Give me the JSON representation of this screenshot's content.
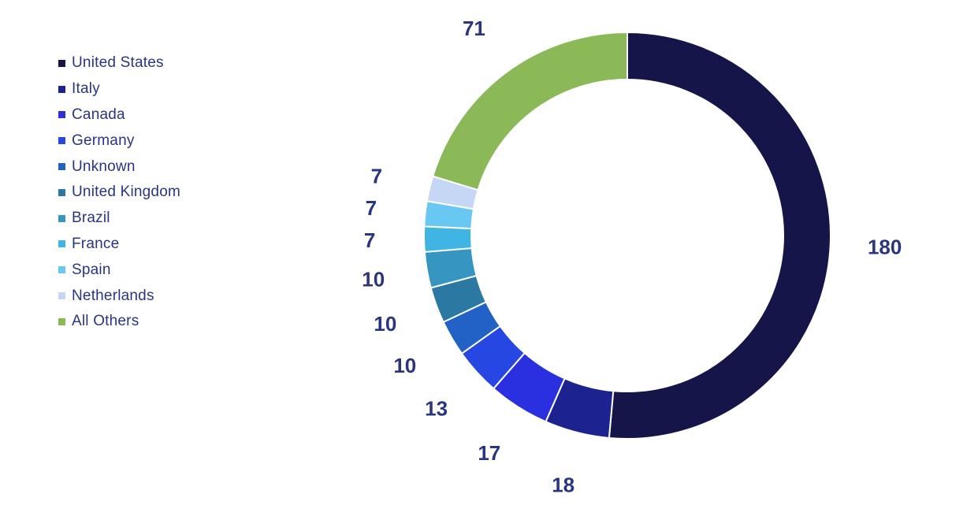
{
  "chart_data": {
    "type": "pie",
    "categories": [
      "United States",
      "Italy",
      "Canada",
      "Germany",
      "Unknown",
      "United Kingdom",
      "Brazil",
      "France",
      "Spain",
      "Netherlands",
      "All Others"
    ],
    "values": [
      180,
      18,
      17,
      13,
      10,
      10,
      10,
      7,
      7,
      7,
      71
    ],
    "value_labels": [
      "180",
      "18",
      "17",
      "13",
      "10",
      "10",
      "10",
      "7",
      "7",
      "7",
      "71"
    ],
    "colors": [
      "#16154a",
      "#1c2391",
      "#2a2fe0",
      "#2747e3",
      "#2262c7",
      "#2b78a3",
      "#3796c1",
      "#40b4e2",
      "#68c8f1",
      "#c6d7f5",
      "#8bb957"
    ],
    "donut": true,
    "legend_placement": "left",
    "label_color": "#2a3580"
  },
  "legend": {
    "items": [
      {
        "label": "United States",
        "color": "#16154a"
      },
      {
        "label": "Italy",
        "color": "#1c2391"
      },
      {
        "label": "Canada",
        "color": "#2a2fe0"
      },
      {
        "label": "Germany",
        "color": "#2747e3"
      },
      {
        "label": "Unknown",
        "color": "#2262c7"
      },
      {
        "label": "United Kingdom",
        "color": "#2b78a3"
      },
      {
        "label": "Brazil",
        "color": "#3796c1"
      },
      {
        "label": "France",
        "color": "#40b4e2"
      },
      {
        "label": "Spain",
        "color": "#68c8f1"
      },
      {
        "label": "Netherlands",
        "color": "#c6d7f5"
      },
      {
        "label": "All Others",
        "color": "#8bb957"
      }
    ]
  }
}
